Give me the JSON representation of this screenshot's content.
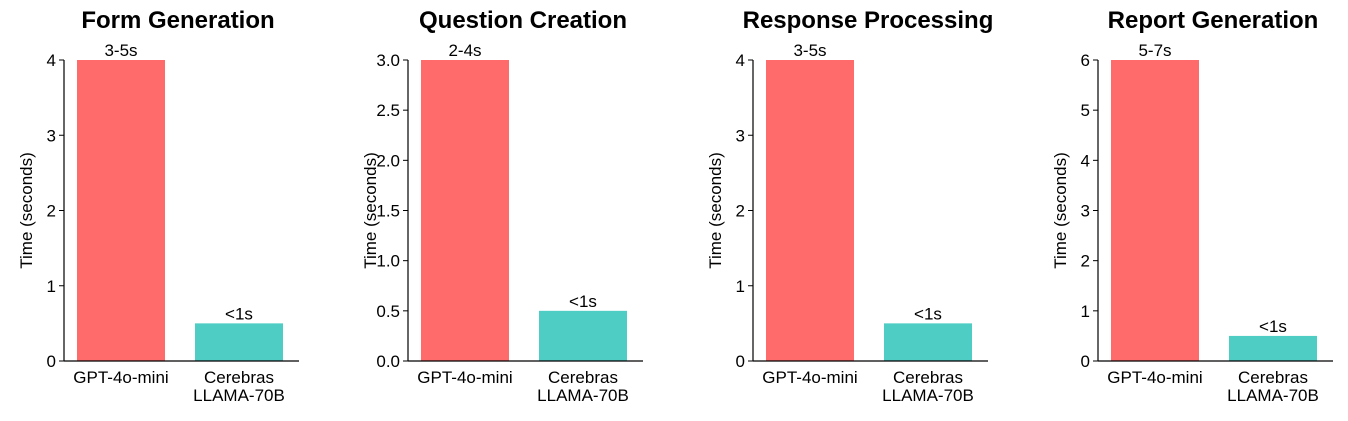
{
  "chart_data": [
    {
      "type": "bar",
      "title": "Form Generation",
      "ylabel": "Time (seconds)",
      "categories": [
        "GPT-4o-mini",
        "Cerebras\nLLAMA-70B"
      ],
      "values": [
        4,
        0.5
      ],
      "data_labels": [
        "3-5s",
        "<1s"
      ],
      "colors": [
        "#ff6b6b",
        "#4ecdc4"
      ],
      "ylim": [
        0,
        4
      ],
      "yticks": [
        0,
        1,
        2,
        3,
        4
      ],
      "ytick_labels": [
        "0",
        "1",
        "2",
        "3",
        "4"
      ],
      "grid": false
    },
    {
      "type": "bar",
      "title": "Question Creation",
      "ylabel": "Time (seconds)",
      "categories": [
        "GPT-4o-mini",
        "Cerebras\nLLAMA-70B"
      ],
      "values": [
        3,
        0.5
      ],
      "data_labels": [
        "2-4s",
        "<1s"
      ],
      "colors": [
        "#ff6b6b",
        "#4ecdc4"
      ],
      "ylim": [
        0,
        3
      ],
      "yticks": [
        0,
        0.5,
        1,
        1.5,
        2,
        2.5,
        3
      ],
      "ytick_labels": [
        "0.0",
        "0.5",
        "1.0",
        "1.5",
        "2.0",
        "2.5",
        "3.0"
      ],
      "grid": false
    },
    {
      "type": "bar",
      "title": "Response Processing",
      "ylabel": "Time (seconds)",
      "categories": [
        "GPT-4o-mini",
        "Cerebras\nLLAMA-70B"
      ],
      "values": [
        4,
        0.5
      ],
      "data_labels": [
        "3-5s",
        "<1s"
      ],
      "colors": [
        "#ff6b6b",
        "#4ecdc4"
      ],
      "ylim": [
        0,
        4
      ],
      "yticks": [
        0,
        1,
        2,
        3,
        4
      ],
      "ytick_labels": [
        "0",
        "1",
        "2",
        "3",
        "4"
      ],
      "grid": false
    },
    {
      "type": "bar",
      "title": "Report Generation",
      "ylabel": "Time (seconds)",
      "categories": [
        "GPT-4o-mini",
        "Cerebras\nLLAMA-70B"
      ],
      "values": [
        6,
        0.5
      ],
      "data_labels": [
        "5-7s",
        "<1s"
      ],
      "colors": [
        "#ff6b6b",
        "#4ecdc4"
      ],
      "ylim": [
        0,
        6
      ],
      "yticks": [
        0,
        1,
        2,
        3,
        4,
        5,
        6
      ],
      "ytick_labels": [
        "0",
        "1",
        "2",
        "3",
        "4",
        "5",
        "6"
      ],
      "grid": false
    }
  ]
}
